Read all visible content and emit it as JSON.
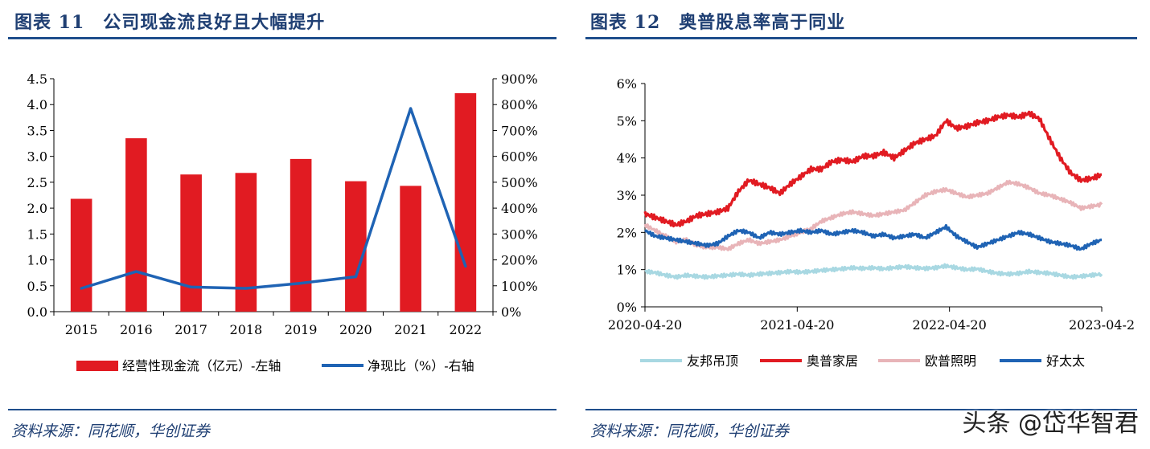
{
  "left": {
    "title": "图表 11　公司现金流良好且大幅提升",
    "source": "资料来源：同花顺，华创证券"
  },
  "right": {
    "title": "图表 12　奥普股息率高于同业",
    "source": "资料来源：同花顺，华创证券"
  },
  "watermark": "头条 @岱华智君",
  "colors": {
    "accent": "#1f4e8c",
    "bar": "#e11b22",
    "line": "#1f63b4"
  },
  "chart_data": [
    {
      "type": "bar",
      "title": "公司现金流良好且大幅提升",
      "categories": [
        "2015",
        "2016",
        "2017",
        "2018",
        "2019",
        "2020",
        "2021",
        "2022"
      ],
      "series": [
        {
          "name": "经营性现金流（亿元）-左轴",
          "kind": "bar",
          "axis": "left",
          "values": [
            2.18,
            3.35,
            2.65,
            2.68,
            2.95,
            2.52,
            2.43,
            4.22
          ]
        },
        {
          "name": "净现比（%）-右轴",
          "kind": "line",
          "axis": "right",
          "values": [
            90,
            155,
            95,
            90,
            110,
            135,
            785,
            175
          ]
        }
      ],
      "yleft": {
        "min": 0,
        "max": 4.5,
        "ticks": [
          "0.0",
          "0.5",
          "1.0",
          "1.5",
          "2.0",
          "2.5",
          "3.0",
          "3.5",
          "4.0",
          "4.5"
        ]
      },
      "yright": {
        "min": 0,
        "max": 900,
        "ticks": [
          "0%",
          "100%",
          "200%",
          "300%",
          "400%",
          "500%",
          "600%",
          "700%",
          "800%",
          "900%"
        ]
      },
      "legend": [
        "经营性现金流（亿元）-左轴",
        "净现比（%）-右轴"
      ]
    },
    {
      "type": "line",
      "title": "奥普股息率高于同业",
      "x_ticks": [
        "2020-04-20",
        "2021-04-20",
        "2022-04-20",
        "2023-04-2"
      ],
      "y_ticks": [
        "0%",
        "1%",
        "2%",
        "3%",
        "4%",
        "5%",
        "6%"
      ],
      "ylim": [
        0,
        6
      ],
      "series": [
        {
          "name": "友邦吊顶",
          "color": "#a8d8e2",
          "values": [
            0.95,
            0.92,
            0.85,
            0.8,
            0.85,
            0.82,
            0.8,
            0.83,
            0.85,
            0.88,
            0.85,
            0.88,
            0.9,
            0.92,
            0.95,
            0.93,
            0.95,
            0.98,
            1.0,
            1.02,
            1.05,
            1.03,
            1.05,
            1.02,
            1.05,
            1.08,
            1.05,
            1.03,
            1.05,
            1.1,
            1.05,
            1.0,
            1.02,
            0.95,
            0.9,
            0.88,
            0.9,
            0.95,
            0.92,
            0.9,
            0.85,
            0.8,
            0.82,
            0.85,
            0.88
          ]
        },
        {
          "name": "奥普家居",
          "color": "#e11b22",
          "values": [
            2.5,
            2.4,
            2.3,
            2.2,
            2.3,
            2.45,
            2.5,
            2.55,
            2.65,
            3.1,
            3.4,
            3.3,
            3.2,
            3.05,
            3.3,
            3.5,
            3.7,
            3.7,
            3.9,
            3.95,
            3.9,
            4.05,
            4.05,
            4.15,
            4.0,
            4.2,
            4.4,
            4.5,
            4.6,
            5.0,
            4.8,
            4.85,
            4.95,
            5.0,
            5.1,
            5.15,
            5.1,
            5.2,
            5.05,
            4.5,
            4.0,
            3.6,
            3.4,
            3.45,
            3.55
          ]
        },
        {
          "name": "欧普照明",
          "color": "#e8b4b8",
          "values": [
            2.2,
            2.05,
            1.9,
            1.75,
            1.8,
            1.65,
            1.6,
            1.6,
            1.55,
            1.7,
            1.8,
            1.7,
            1.75,
            1.8,
            1.9,
            2.0,
            2.1,
            2.3,
            2.4,
            2.5,
            2.55,
            2.5,
            2.45,
            2.5,
            2.55,
            2.6,
            2.8,
            3.0,
            3.1,
            3.15,
            3.05,
            2.95,
            3.0,
            3.05,
            3.2,
            3.35,
            3.3,
            3.2,
            3.05,
            3.0,
            2.9,
            2.8,
            2.65,
            2.7,
            2.75
          ]
        },
        {
          "name": "好太太",
          "color": "#1f63b4",
          "values": [
            2.05,
            1.9,
            1.85,
            1.8,
            1.75,
            1.7,
            1.65,
            1.7,
            1.9,
            2.05,
            2.0,
            1.85,
            2.0,
            1.95,
            2.0,
            2.05,
            2.0,
            2.05,
            1.95,
            2.0,
            2.05,
            2.0,
            1.9,
            1.95,
            1.85,
            1.9,
            1.95,
            1.85,
            2.0,
            2.15,
            1.9,
            1.75,
            1.6,
            1.7,
            1.8,
            1.9,
            2.0,
            1.95,
            1.85,
            1.75,
            1.7,
            1.65,
            1.55,
            1.7,
            1.8
          ]
        }
      ],
      "legend": [
        "友邦吊顶",
        "奥普家居",
        "欧普照明",
        "好太太"
      ]
    }
  ]
}
